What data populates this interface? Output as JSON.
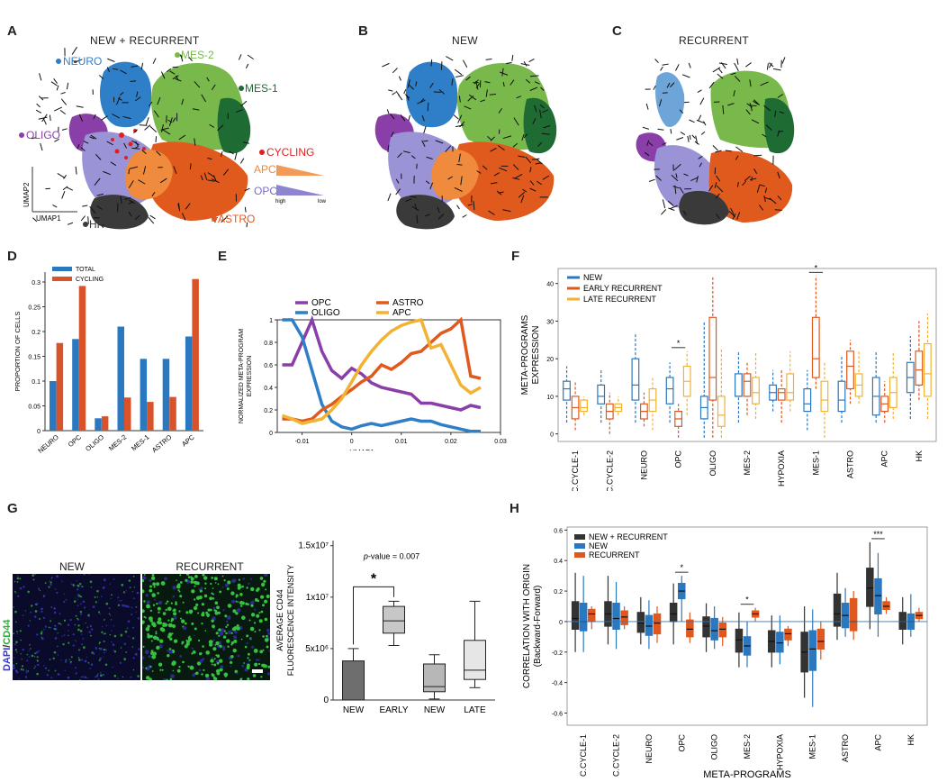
{
  "panels": {
    "A": {
      "letter": "A",
      "title": "NEW + RECURRENT",
      "clusters": {
        "neuro": "NEURO",
        "mes2": "MES-2",
        "mes1": "MES-1",
        "oligo": "OLIGO",
        "cycling": "CYCLING",
        "apc": "APC",
        "opc": "OPC",
        "astro": "ASTRO",
        "hk": "HK"
      },
      "axis": {
        "umap1": "UMAP1",
        "umap2": "UMAP2"
      },
      "gradient": {
        "high": "high",
        "low": "low"
      }
    },
    "B": {
      "letter": "B",
      "title": "NEW"
    },
    "C": {
      "letter": "C",
      "title": "RECURRENT"
    },
    "D": {
      "letter": "D"
    },
    "E": {
      "letter": "E"
    },
    "F": {
      "letter": "F"
    },
    "G": {
      "letter": "G",
      "micro_new": "NEW",
      "micro_rec": "RECURRENT",
      "stain_dapi": "DAPI",
      "stain_sep": "/",
      "stain_cd44": "CD44"
    },
    "H": {
      "letter": "H"
    }
  },
  "colors": {
    "neuro": "#2f7fc8",
    "mes2": "#79b84a",
    "mes1": "#1e6b34",
    "oligo": "#8a3fa8",
    "cycling": "#e02020",
    "apc": "#f08a3c",
    "opc": "#9a93d6",
    "astro": "#e05a1e",
    "hk": "#3a3a3a",
    "total": "#2a78c0",
    "cyc": "#d9532a",
    "new": "#2a78c0",
    "early": "#e0581e",
    "late": "#f2b233",
    "combo": "#333333"
  },
  "chart_data": [
    {
      "id": "D",
      "type": "bar",
      "title": "",
      "ylabel": "PROPORTION OF CELLS",
      "xlabel": "",
      "categories": [
        "NEURO",
        "OPC",
        "OLIGO",
        "MES-2",
        "MES-1",
        "ASTRO",
        "APC"
      ],
      "series": [
        {
          "name": "TOTAL",
          "values": [
            0.1,
            0.185,
            0.025,
            0.21,
            0.145,
            0.145,
            0.19
          ]
        },
        {
          "name": "CYCLING",
          "values": [
            0.177,
            0.292,
            0.029,
            0.067,
            0.058,
            0.068,
            0.306
          ]
        }
      ],
      "ylim": [
        0,
        0.32
      ],
      "yticks": [
        "0",
        "0.05",
        "0.1",
        "0.15",
        "0.2",
        "0.25",
        "0.3"
      ],
      "legend": "top-left"
    },
    {
      "id": "E",
      "type": "line",
      "xlabel": "UMAP1",
      "ylabel": "NORMALIZED META-PROGRAM EXPRESSION",
      "xlim": [
        -0.015,
        0.03
      ],
      "ylim": [
        0,
        1
      ],
      "xticks": [
        "-0.01",
        "0",
        "0.01",
        "0.02",
        "0.03"
      ],
      "yticks": [
        "0",
        "0.2",
        "0.4",
        "0.6",
        "0.8",
        "1"
      ],
      "series": [
        {
          "name": "OPC",
          "x": [
            -0.014,
            -0.012,
            -0.01,
            -0.008,
            -0.006,
            -0.004,
            -0.002,
            0,
            0.002,
            0.004,
            0.006,
            0.008,
            0.01,
            0.012,
            0.014,
            0.016,
            0.018,
            0.02,
            0.022,
            0.024,
            0.026
          ],
          "values": [
            0.6,
            0.6,
            0.8,
            1.0,
            0.72,
            0.55,
            0.48,
            0.57,
            0.52,
            0.44,
            0.4,
            0.38,
            0.36,
            0.34,
            0.26,
            0.26,
            0.24,
            0.22,
            0.2,
            0.24,
            0.22
          ]
        },
        {
          "name": "OLIGO",
          "x": [
            -0.014,
            -0.012,
            -0.01,
            -0.008,
            -0.006,
            -0.004,
            -0.002,
            0,
            0.002,
            0.004,
            0.006,
            0.008,
            0.01,
            0.012,
            0.014,
            0.016,
            0.018,
            0.02,
            0.022,
            0.024,
            0.026
          ],
          "values": [
            1.0,
            1.0,
            0.85,
            0.55,
            0.25,
            0.1,
            0.05,
            0.03,
            0.06,
            0.08,
            0.06,
            0.08,
            0.1,
            0.12,
            0.1,
            0.1,
            0.07,
            0.05,
            0.03,
            0.01,
            0.01
          ]
        },
        {
          "name": "ASTRO",
          "x": [
            -0.014,
            -0.012,
            -0.01,
            -0.008,
            -0.006,
            -0.004,
            -0.002,
            0,
            0.002,
            0.004,
            0.006,
            0.008,
            0.01,
            0.012,
            0.014,
            0.016,
            0.018,
            0.02,
            0.022,
            0.024,
            0.026
          ],
          "values": [
            0.12,
            0.12,
            0.1,
            0.12,
            0.2,
            0.25,
            0.32,
            0.38,
            0.45,
            0.5,
            0.6,
            0.56,
            0.62,
            0.7,
            0.72,
            0.8,
            0.88,
            0.92,
            1.0,
            0.5,
            0.48
          ]
        },
        {
          "name": "APC",
          "x": [
            -0.014,
            -0.012,
            -0.01,
            -0.008,
            -0.006,
            -0.004,
            -0.002,
            0,
            0.002,
            0.004,
            0.006,
            0.008,
            0.01,
            0.012,
            0.014,
            0.016,
            0.018,
            0.02,
            0.022,
            0.024,
            0.026
          ],
          "values": [
            0.15,
            0.12,
            0.08,
            0.1,
            0.12,
            0.2,
            0.3,
            0.45,
            0.6,
            0.72,
            0.82,
            0.9,
            0.95,
            0.98,
            1.0,
            0.75,
            0.78,
            0.6,
            0.42,
            0.35,
            0.4
          ]
        }
      ],
      "legend": "top"
    },
    {
      "id": "F",
      "type": "box",
      "ylabel_lines": [
        "META-PROGRAMS",
        "EXPRESSION"
      ],
      "categories": [
        "C.CYCLE-1",
        "C.CYCLE-2",
        "NEURO",
        "OPC",
        "OLIGO",
        "MES-2",
        "HYPOXIA",
        "MES-1",
        "ASTRO",
        "APC",
        "HK"
      ],
      "ylim": [
        -2,
        44
      ],
      "yticks": [
        "0",
        "10",
        "20",
        "30",
        "40"
      ],
      "series": [
        {
          "name": "NEW",
          "boxes": [
            [
              3,
              9,
              12,
              14,
              18
            ],
            [
              3,
              8,
              10,
              13,
              17
            ],
            [
              3,
              9,
              13,
              20,
              27
            ],
            [
              3,
              8,
              12,
              15,
              19
            ],
            [
              -1,
              4,
              7,
              10,
              30
            ],
            [
              3,
              10,
              10,
              16,
              22
            ],
            [
              6,
              9,
              11,
              13,
              17
            ],
            [
              1,
              6,
              8,
              12,
              17
            ],
            [
              3,
              6,
              9,
              14,
              21
            ],
            [
              3,
              5,
              10,
              15,
              22
            ],
            [
              4,
              11,
              15,
              19,
              26
            ]
          ]
        },
        {
          "name": "EARLY RECURRENT",
          "boxes": [
            [
              1,
              4,
              7,
              10,
              14
            ],
            [
              0,
              4,
              6,
              8,
              11
            ],
            [
              2,
              4,
              6,
              8,
              11
            ],
            [
              -1,
              2,
              4,
              6,
              8
            ],
            [
              -1,
              9,
              15,
              31,
              42
            ],
            [
              5,
              10,
              14,
              16,
              19
            ],
            [
              3,
              9,
              11,
              12,
              17
            ],
            [
              12,
              15,
              20,
              31,
              42
            ],
            [
              8,
              12,
              18,
              22,
              25
            ],
            [
              3,
              6,
              8,
              10,
              14
            ],
            [
              9,
              13,
              17,
              22,
              30
            ]
          ]
        },
        {
          "name": "LATE RECURRENT",
          "boxes": [
            [
              5,
              6,
              7,
              9,
              10
            ],
            [
              5,
              6,
              7,
              8,
              10
            ],
            [
              1,
              6,
              9,
              12,
              15
            ],
            [
              5,
              10,
              14,
              18,
              22
            ],
            [
              -1,
              2,
              5,
              10,
              23
            ],
            [
              4,
              8,
              11,
              15,
              22
            ],
            [
              6,
              9,
              11,
              16,
              22
            ],
            [
              -1,
              6,
              9,
              14,
              19
            ],
            [
              8,
              10,
              13,
              16,
              22
            ],
            [
              4,
              7,
              11,
              15,
              22
            ],
            [
              4,
              10,
              16,
              24,
              32
            ]
          ]
        }
      ],
      "significance": [
        {
          "category": "OPC",
          "label": "*"
        },
        {
          "category": "MES-1",
          "label": "*"
        }
      ],
      "legend": "top-left"
    },
    {
      "id": "G",
      "type": "box",
      "ylabel_lines": [
        "AVERAGE CD44",
        "FLUORESCENCE INTENSITY"
      ],
      "categories": [
        "NEW",
        "EARLY",
        "NEW",
        "LATE"
      ],
      "yticks": [
        "0",
        "5x10⁶",
        "1x10⁷",
        "1.5x10⁷"
      ],
      "ylim": [
        0,
        15500000
      ],
      "boxes": [
        [
          0,
          0,
          0,
          3800000,
          5000000
        ],
        [
          5300000,
          6500000,
          7700000,
          9100000,
          9600000
        ],
        [
          100000,
          800000,
          1300000,
          3500000,
          4400000
        ],
        [
          1200000,
          2000000,
          2900000,
          5800000,
          9600000
        ]
      ],
      "fills": [
        "#6e6e6e",
        "#c7c7c7",
        "#b7b7b7",
        "#e6e6e6"
      ],
      "annotation": "p-value = 0.007",
      "annotation_italic": "p",
      "annotation_rest": "-value = 0.007",
      "sig_label": "*"
    },
    {
      "id": "H",
      "type": "box",
      "ylabel_lines": [
        "CORRELATION WITH ORIGIN",
        "(Backward-Forward)"
      ],
      "xlabel": "META-PROGRAMS",
      "categories": [
        "C.CYCLE-1",
        "C.CYCLE-2",
        "NEURO",
        "OPC",
        "OLIGO",
        "MES-2",
        "HYPOXIA",
        "MES-1",
        "ASTRO",
        "APC",
        "HK"
      ],
      "ylim": [
        -0.68,
        0.62
      ],
      "yticks": [
        "-0.6",
        "-0.4",
        "-0.2",
        "0",
        "0.2",
        "0.4",
        "0.6"
      ],
      "series": [
        {
          "name": "NEW + RECURRENT",
          "boxes": [
            [
              -0.2,
              -0.05,
              0.02,
              0.13,
              0.32
            ],
            [
              -0.15,
              -0.03,
              0.05,
              0.13,
              0.3
            ],
            [
              -0.15,
              -0.07,
              -0.01,
              0.06,
              0.16
            ],
            [
              -0.15,
              0.0,
              0.05,
              0.12,
              0.25
            ],
            [
              -0.2,
              -0.1,
              -0.03,
              0.03,
              0.12
            ],
            [
              -0.3,
              -0.2,
              -0.12,
              -0.05,
              0.06
            ],
            [
              -0.3,
              -0.2,
              -0.13,
              -0.06,
              0.04
            ],
            [
              -0.5,
              -0.33,
              -0.2,
              -0.07,
              0.1
            ],
            [
              -0.12,
              -0.03,
              0.05,
              0.18,
              0.32
            ],
            [
              -0.05,
              0.1,
              0.22,
              0.35,
              0.52
            ],
            [
              -0.15,
              -0.05,
              0.0,
              0.06,
              0.16
            ]
          ]
        },
        {
          "name": "NEW",
          "boxes": [
            [
              -0.2,
              -0.06,
              0.0,
              0.12,
              0.3
            ],
            [
              -0.18,
              -0.05,
              0.02,
              0.12,
              0.26
            ],
            [
              -0.18,
              -0.09,
              -0.03,
              0.04,
              0.14
            ],
            [
              0.0,
              0.15,
              0.2,
              0.25,
              0.3
            ],
            [
              -0.18,
              -0.12,
              -0.06,
              0.02,
              0.1
            ],
            [
              -0.3,
              -0.22,
              -0.16,
              -0.1,
              0.0
            ],
            [
              -0.28,
              -0.2,
              -0.14,
              -0.07,
              0.04
            ],
            [
              -0.56,
              -0.32,
              -0.18,
              -0.06,
              0.08
            ],
            [
              -0.1,
              -0.04,
              0.04,
              0.12,
              0.22
            ],
            [
              -0.1,
              0.05,
              0.17,
              0.28,
              0.45
            ],
            [
              -0.1,
              -0.05,
              0.0,
              0.05,
              0.18
            ]
          ]
        },
        {
          "name": "RECURRENT",
          "boxes": [
            [
              -0.05,
              0.0,
              0.05,
              0.08,
              0.1
            ],
            [
              -0.05,
              -0.02,
              0.03,
              0.07,
              0.1
            ],
            [
              -0.14,
              -0.08,
              -0.01,
              0.05,
              0.1
            ],
            [
              -0.14,
              -0.1,
              -0.05,
              0.01,
              0.06
            ],
            [
              -0.16,
              -0.1,
              -0.05,
              -0.01,
              0.03
            ],
            [
              0.0,
              0.03,
              0.05,
              0.07,
              0.09
            ],
            [
              -0.16,
              -0.12,
              -0.08,
              -0.05,
              -0.03
            ],
            [
              -0.25,
              -0.18,
              -0.13,
              -0.05,
              0.0
            ],
            [
              -0.12,
              -0.06,
              0.0,
              0.15,
              0.2
            ],
            [
              0.05,
              0.08,
              0.1,
              0.13,
              0.16
            ],
            [
              0.0,
              0.02,
              0.04,
              0.06,
              0.09
            ]
          ]
        }
      ],
      "significance": [
        {
          "category": "OPC",
          "label": "*"
        },
        {
          "category": "MES-2",
          "label": "*"
        },
        {
          "category": "APC",
          "label": "***"
        }
      ],
      "legend": "top-left"
    }
  ]
}
